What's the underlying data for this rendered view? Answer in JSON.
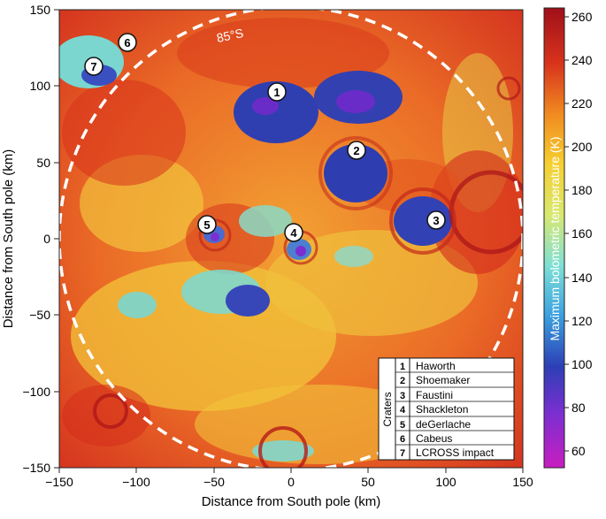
{
  "map": {
    "xlabel": "Distance from South pole (km)",
    "ylabel": "Distance from South pole (km)",
    "x_ticks": [
      "−150",
      "−100",
      "−50",
      "0",
      "50",
      "100",
      "150"
    ],
    "y_ticks": [
      "150",
      "100",
      "50",
      "0",
      "−50",
      "−100",
      "−150"
    ],
    "latitude_label": "85°S",
    "colorbar": {
      "label": "Maximum bolometric temperature (K)",
      "ticks": [
        "260",
        "240",
        "220",
        "200",
        "180",
        "160",
        "140",
        "120",
        "100",
        "80",
        "60"
      ],
      "range": [
        53,
        265
      ]
    },
    "legend": {
      "title": "Craters",
      "items": [
        {
          "num": "1",
          "name": "Haworth"
        },
        {
          "num": "2",
          "name": "Shoemaker"
        },
        {
          "num": "3",
          "name": "Faustini"
        },
        {
          "num": "4",
          "name": "Shackleton"
        },
        {
          "num": "5",
          "name": "deGerlache"
        },
        {
          "num": "6",
          "name": "Cabeus"
        },
        {
          "num": "7",
          "name": "LCROSS impact"
        }
      ]
    },
    "markers": [
      "1",
      "2",
      "3",
      "4",
      "5",
      "6",
      "7"
    ]
  }
}
